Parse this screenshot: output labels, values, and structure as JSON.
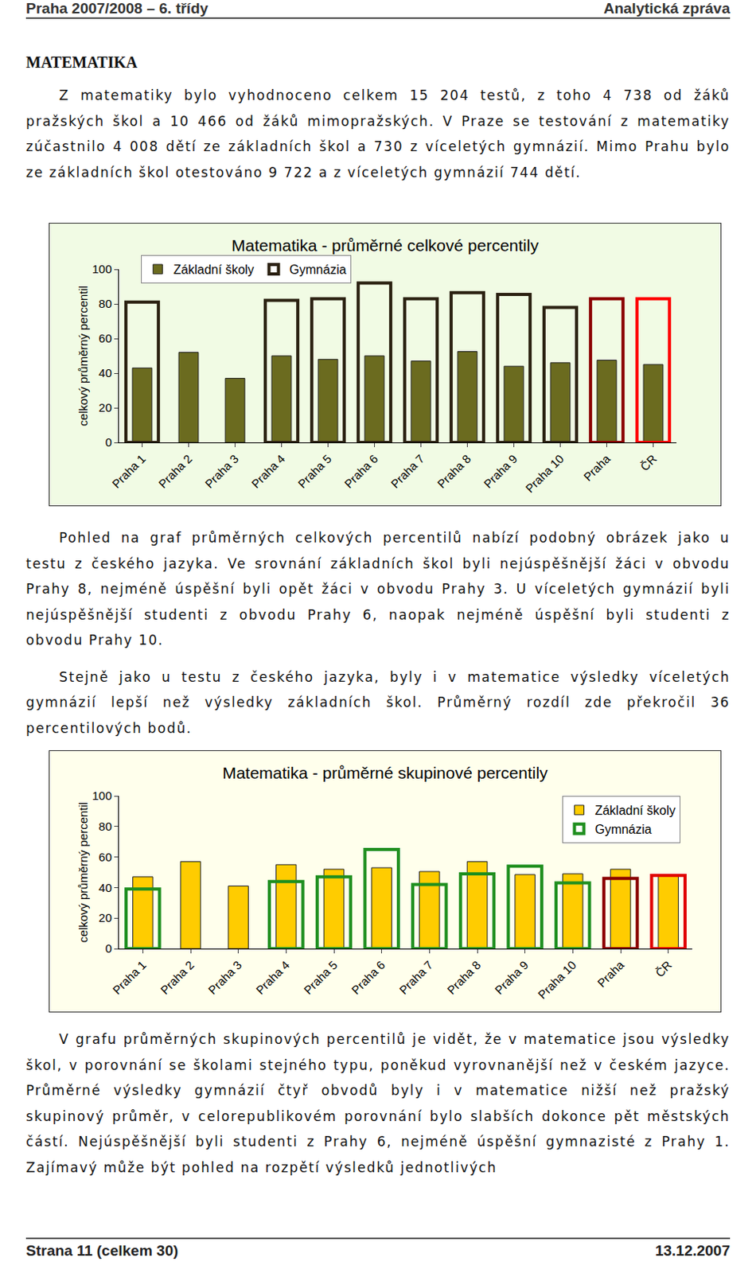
{
  "header": {
    "left": "Praha 2007/2008 – 6. třídy",
    "right": "Analytická zpráva"
  },
  "heading": "MATEMATIKA",
  "paragraphs": [
    "Z matematiky bylo vyhodnoceno celkem 15 204 testů, z toho 4 738 od žáků pražských škol a 10 466 od žáků mimopražských. V Praze se testování z matematiky zúčastnilo 4 008 dětí ze základních škol a 730 z víceletých gymnázií. Mimo Prahu bylo ze základních škol otestováno 9 722 a z víceletých gymnázií 744 dětí.",
    "Pohled na graf průměrných celkových percentilů nabízí podobný obrázek jako u testu z českého jazyka. Ve srovnání základních škol byli nejúspěšnější žáci v obvodu Prahy 8, nejméně úspěšní byli opět žáci v obvodu Prahy 3. U víceletých gymnázií byli nejúspěšnější studenti z obvodu Prahy 6, naopak nejméně úspěšní byli studenti z obvodu Prahy 10.",
    "Stejně jako u testu z českého jazyka, byly i v matematice výsledky víceletých gymnázií lepší než výsledky základních škol. Průměrný rozdíl zde překročil 36 percentilových bodů.",
    "V grafu průměrných skupinových percentilů je vidět, že v matematice jsou výsledky škol, v porovnání se školami stejného typu, poněkud vyrovnanější než v českém jazyce. Průměrné výsledky gymnázií čtyř obvodů byly i v matematice nižší než pražský skupinový průměr, v celorepublikovém porovnání bylo slabších dokonce pět městských částí. Nejúspěšnější byli studenti z Prahy 6, nejméně úspěšní gymnazisté z Prahy 1. Zajímavý může být pohled na rozpětí výsledků jednotlivých"
  ],
  "chart_data": [
    {
      "type": "bar",
      "title": "Matematika - průměrné celkové percentily",
      "y_label": "celkový průměrný percentil",
      "categories": [
        "Praha 1",
        "Praha 2",
        "Praha 3",
        "Praha 4",
        "Praha 5",
        "Praha 6",
        "Praha 7",
        "Praha 8",
        "Praha 9",
        "Praha 10",
        "Praha",
        "ČR"
      ],
      "series": [
        {
          "name": "Základní školy",
          "color": "#6b6b1f",
          "values": [
            43,
            52,
            37,
            50,
            48,
            50,
            47,
            52.5,
            44,
            46,
            47.5,
            45
          ]
        },
        {
          "name": "Gymnázia",
          "color": "#2b2111",
          "colors": [
            "#2b2111",
            "#2b2111",
            "#2b2111",
            "#2b2111",
            "#2b2111",
            "#2b2111",
            "#2b2111",
            "#2b2111",
            "#2b2111",
            "#2b2111",
            "#8b0000",
            "#ff0000"
          ],
          "values": [
            81,
            null,
            null,
            82,
            83,
            92,
            83,
            86.5,
            85.5,
            78,
            83,
            83
          ]
        }
      ],
      "ylim": [
        0,
        100
      ],
      "yticks": [
        0,
        20,
        40,
        60,
        80,
        100
      ],
      "grid": false,
      "legend": "upper left"
    },
    {
      "type": "bar",
      "title": "Matematika - průměrné skupinové percentily",
      "y_label": "celkový průměrný percentil",
      "categories": [
        "Praha 1",
        "Praha 2",
        "Praha 3",
        "Praha 4",
        "Praha 5",
        "Praha 6",
        "Praha 7",
        "Praha 8",
        "Praha 9",
        "Praha 10",
        "Praha",
        "ČR"
      ],
      "series": [
        {
          "name": "Základní školy",
          "color": "#ffcc00",
          "values": [
            47,
            57,
            41,
            55,
            52,
            53,
            50.5,
            57,
            48.5,
            49,
            52,
            48
          ]
        },
        {
          "name": "Gymnázia",
          "color": "#1f8f1f",
          "colors": [
            "#1f8f1f",
            "#1f8f1f",
            "#1f8f1f",
            "#1f8f1f",
            "#1f8f1f",
            "#1f8f1f",
            "#1f8f1f",
            "#1f8f1f",
            "#1f8f1f",
            "#1f8f1f",
            "#8b0000",
            "#e00000"
          ],
          "values": [
            39,
            null,
            null,
            44,
            47,
            65,
            42,
            49,
            54,
            43,
            46,
            48
          ]
        }
      ],
      "ylim": [
        0,
        100
      ],
      "yticks": [
        0,
        20,
        40,
        60,
        80,
        100
      ],
      "grid": false,
      "legend": "upper right"
    }
  ],
  "footer": {
    "left": "Strana 11 (celkem 30)",
    "right": "13.12.2007"
  }
}
